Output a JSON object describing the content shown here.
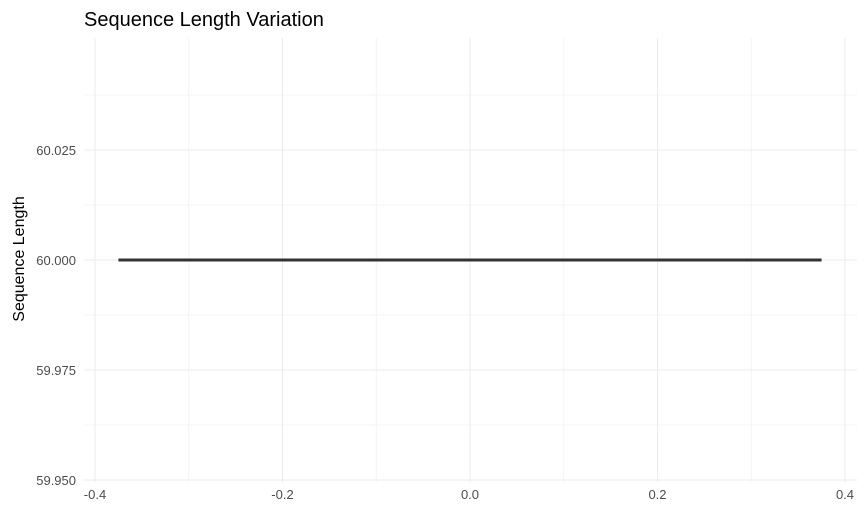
{
  "chart_data": {
    "type": "line",
    "title": "Sequence Length Variation",
    "xlabel": "",
    "ylabel": "Sequence Length",
    "xlim": [
      -0.4,
      0.4
    ],
    "ylim": [
      59.95,
      60.05
    ],
    "x_ticks": [
      -0.4,
      -0.2,
      0.0,
      0.2,
      0.4
    ],
    "x_tick_labels": [
      "-0.4",
      "-0.2",
      "0.0",
      "0.2",
      "0.4"
    ],
    "y_ticks": [
      59.95,
      59.975,
      60.0,
      60.025
    ],
    "y_tick_labels": [
      "59.950",
      "59.975",
      "60.000",
      "60.025"
    ],
    "grid": true,
    "legend": "none",
    "series": [
      {
        "x": [
          -0.375,
          0.375
        ],
        "y": [
          60.0,
          60.0
        ],
        "color": "#333333"
      }
    ]
  }
}
